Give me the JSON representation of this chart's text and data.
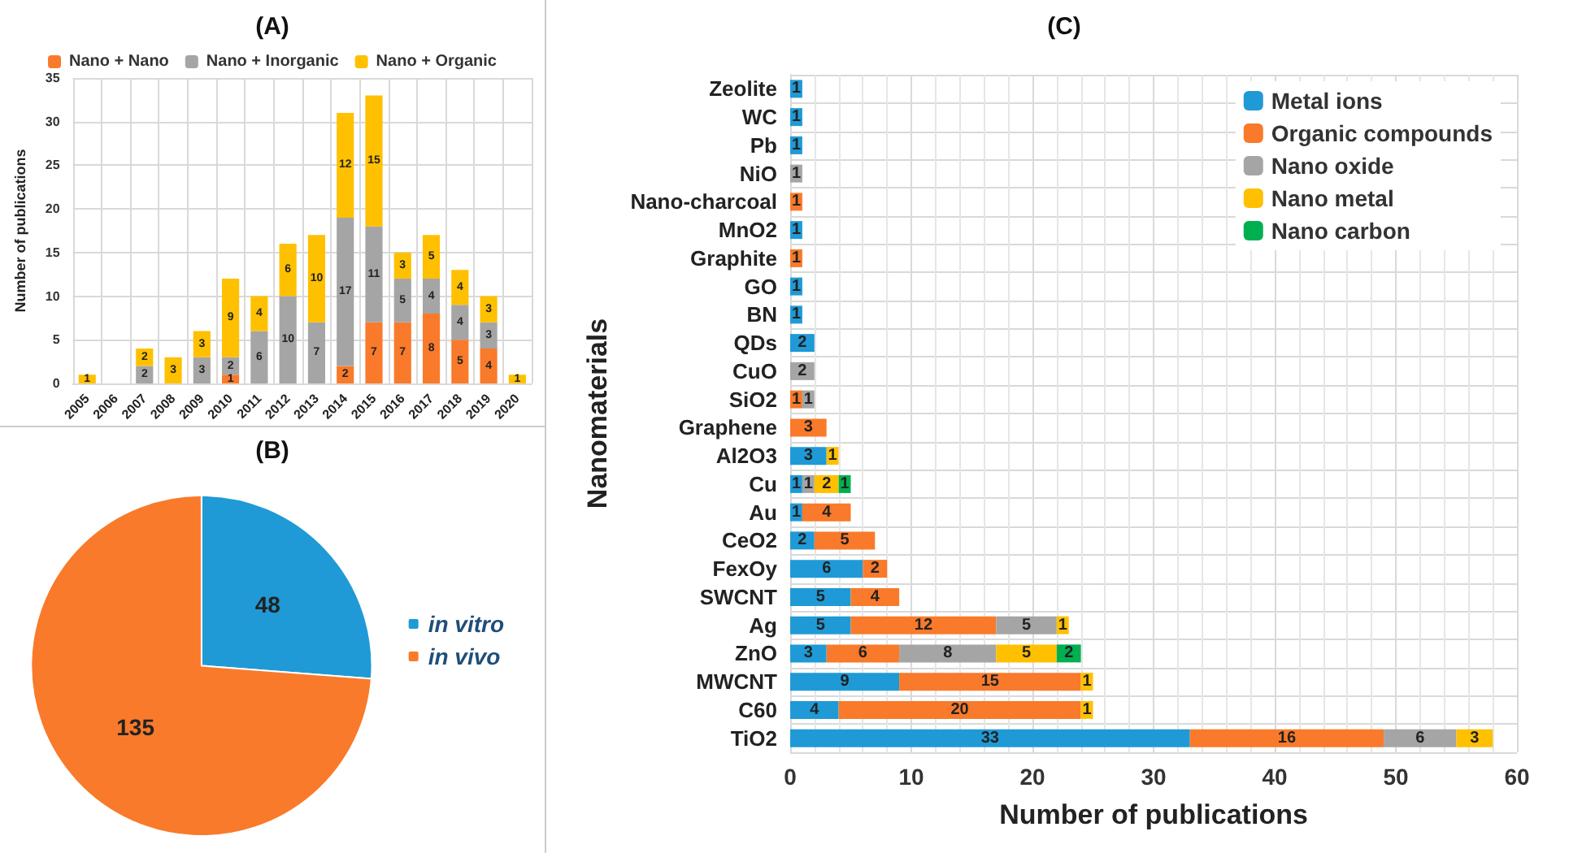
{
  "chart_data": [
    {
      "type": "bar",
      "title": "(A)",
      "ylabel": "Number of publications",
      "stacked": true,
      "data_labels": true,
      "grid": true,
      "legend": "top",
      "categories": [
        "2005",
        "2006",
        "2007",
        "2008",
        "2009",
        "2010",
        "2011",
        "2012",
        "2013",
        "2014",
        "2015",
        "2016",
        "2017",
        "2018",
        "2019",
        "2020"
      ],
      "ylim": [
        0,
        35
      ],
      "yticks": [
        0,
        5,
        10,
        15,
        20,
        25,
        30,
        35
      ],
      "series": [
        {
          "name": "Nano + Nano",
          "color": "#f97a2a",
          "values": [
            null,
            null,
            null,
            null,
            null,
            1,
            null,
            null,
            null,
            2,
            7,
            7,
            8,
            5,
            4,
            null
          ]
        },
        {
          "name": "Nano + Inorganic",
          "color": "#a5a5a5",
          "values": [
            null,
            null,
            2,
            null,
            3,
            2,
            6,
            10,
            7,
            17,
            11,
            5,
            4,
            4,
            3,
            null
          ]
        },
        {
          "name": "Nano + Organic",
          "color": "#ffc000",
          "values": [
            1,
            null,
            2,
            3,
            3,
            9,
            4,
            6,
            10,
            12,
            15,
            3,
            5,
            4,
            3,
            1
          ]
        }
      ]
    },
    {
      "type": "pie",
      "title": "(B)",
      "legend": "right",
      "data_labels": true,
      "categories": [
        "in vitro",
        "in vivo"
      ],
      "values": [
        48,
        135
      ],
      "colors": [
        "#1f9ad6",
        "#f97a2a"
      ]
    },
    {
      "type": "bar",
      "title": "(C)",
      "xlabel": "Number of publications",
      "ylabel": "Nanomaterials",
      "stacked": true,
      "orientation": "horizontal",
      "data_labels": true,
      "grid": true,
      "legend": "top right",
      "categories": [
        "Zeolite",
        "WC",
        "Pb",
        "NiO",
        "Nano-charcoal",
        "MnO2",
        "Graphite",
        "GO",
        "BN",
        "QDs",
        "CuO",
        "SiO2",
        "Graphene",
        "Al2O3",
        "Cu",
        "Au",
        "CeO2",
        "FexOy",
        "SWCNT",
        "Ag",
        "ZnO",
        "MWCNT",
        "C60",
        "TiO2"
      ],
      "xlim": [
        0,
        60
      ],
      "xticks": [
        0,
        10,
        20,
        30,
        40,
        50,
        60
      ],
      "series": [
        {
          "name": "Metal ions",
          "color": "#1f9ad6",
          "values": [
            1,
            1,
            1,
            null,
            null,
            1,
            null,
            1,
            1,
            2,
            null,
            null,
            null,
            3,
            1,
            1,
            2,
            6,
            5,
            5,
            3,
            9,
            4,
            33
          ]
        },
        {
          "name": "Organic compounds",
          "color": "#f97a2a",
          "values": [
            null,
            null,
            null,
            null,
            1,
            null,
            1,
            null,
            null,
            null,
            null,
            1,
            3,
            null,
            null,
            4,
            5,
            2,
            4,
            12,
            6,
            15,
            20,
            16
          ]
        },
        {
          "name": "Nano oxide",
          "color": "#a5a5a5",
          "values": [
            null,
            null,
            null,
            1,
            null,
            null,
            null,
            null,
            null,
            null,
            2,
            1,
            null,
            null,
            1,
            null,
            null,
            null,
            null,
            5,
            8,
            null,
            null,
            6
          ]
        },
        {
          "name": "Nano metal",
          "color": "#ffc000",
          "values": [
            null,
            null,
            null,
            null,
            null,
            null,
            null,
            null,
            null,
            null,
            null,
            null,
            null,
            1,
            2,
            null,
            null,
            null,
            null,
            1,
            5,
            1,
            1,
            3
          ]
        },
        {
          "name": "Nano carbon",
          "color": "#00b050",
          "values": [
            null,
            null,
            null,
            null,
            null,
            null,
            null,
            null,
            null,
            null,
            null,
            null,
            null,
            null,
            1,
            null,
            null,
            null,
            null,
            null,
            2,
            null,
            null,
            null
          ]
        }
      ]
    }
  ]
}
